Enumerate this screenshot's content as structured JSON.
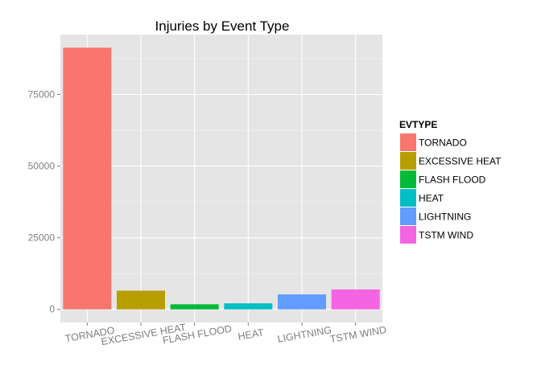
{
  "chart_data": {
    "type": "bar",
    "title": "Injuries by Event Type",
    "xlabel": "",
    "ylabel": "",
    "categories": [
      "TORNADO",
      "EXCESSIVE HEAT",
      "FLASH FLOOD",
      "HEAT",
      "LIGHTNING",
      "TSTM WIND"
    ],
    "values": [
      91346,
      6525,
      1777,
      2100,
      5230,
      6957
    ],
    "ylim": [
      -4567,
      95913
    ],
    "yticks": [
      0,
      25000,
      50000,
      75000
    ],
    "ytick_labels": [
      "0",
      "25000",
      "50000",
      "75000"
    ],
    "grid": true,
    "legend": {
      "title": "EVTYPE",
      "position": "right",
      "entries": [
        "TORNADO",
        "EXCESSIVE HEAT",
        "FLASH FLOOD",
        "HEAT",
        "LIGHTNING",
        "TSTM WIND"
      ]
    },
    "colors": [
      "#F8766D",
      "#B79F00",
      "#00BA38",
      "#00BFC4",
      "#619CFF",
      "#F564E3"
    ],
    "panel_background": "#E5E5E5",
    "grid_color": "#FFFFFF"
  }
}
